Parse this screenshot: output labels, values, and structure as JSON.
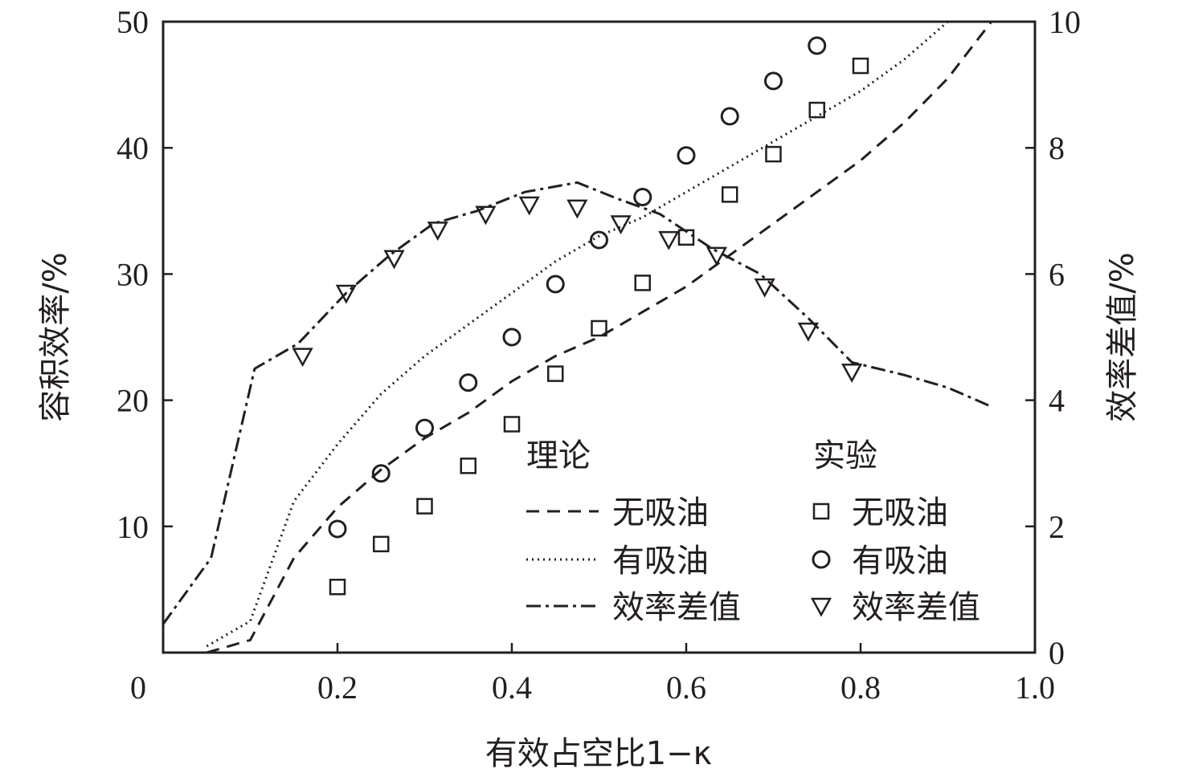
{
  "chart_data": {
    "type": "line",
    "x_axis": {
      "label": "有效占空比1−κ",
      "range": [
        0,
        1.0
      ],
      "ticks": [
        0,
        0.2,
        0.4,
        0.6,
        0.8,
        1.0
      ],
      "tick_labels": [
        "0",
        "0.2",
        "0.4",
        "0.6",
        "0.8",
        "1.0"
      ]
    },
    "y_axis_left": {
      "label": "容积效率/%",
      "range": [
        0,
        50
      ],
      "ticks": [
        10,
        20,
        30,
        40,
        50
      ],
      "tick_labels": [
        "10",
        "20",
        "30",
        "40",
        "50"
      ]
    },
    "y_axis_right": {
      "label": "效率差值/%",
      "range": [
        0,
        10
      ],
      "ticks": [
        0,
        2,
        4,
        6,
        8,
        10
      ],
      "tick_labels": [
        "0",
        "2",
        "4",
        "6",
        "8",
        "10"
      ]
    },
    "grid": false,
    "legend": {
      "placement": "bottom-right",
      "theory_heading": "理论",
      "experiment_heading": "实验",
      "entries": [
        "无吸油",
        "有吸油",
        "效率差值"
      ]
    },
    "series": [
      {
        "name": "无吸油",
        "group": "理论",
        "kind": "line",
        "style": "dashed",
        "axis": "left",
        "x": [
          0.05,
          0.1,
          0.15,
          0.2,
          0.25,
          0.3,
          0.35,
          0.4,
          0.45,
          0.5,
          0.55,
          0.6,
          0.65,
          0.7,
          0.75,
          0.8,
          0.85,
          0.9,
          0.95
        ],
        "y": [
          0,
          1,
          7.5,
          11.5,
          14.5,
          17,
          19,
          21.5,
          23.5,
          25,
          27,
          29,
          31.5,
          34,
          36.5,
          39,
          42,
          45.5,
          50
        ]
      },
      {
        "name": "有吸油",
        "group": "理论",
        "kind": "line",
        "style": "dotted",
        "axis": "left",
        "x": [
          0.05,
          0.1,
          0.15,
          0.2,
          0.25,
          0.3,
          0.35,
          0.4,
          0.45,
          0.5,
          0.55,
          0.6,
          0.65,
          0.7,
          0.75,
          0.8,
          0.85,
          0.9
        ],
        "y": [
          0.5,
          2.5,
          12,
          16.5,
          20.5,
          23.5,
          26,
          28.5,
          31,
          33,
          34.5,
          36.5,
          38.5,
          40.5,
          42.5,
          44.5,
          47,
          50
        ]
      },
      {
        "name": "效率差值",
        "group": "理论",
        "kind": "line",
        "style": "dashdot",
        "axis": "right",
        "x": [
          0,
          0.055,
          0.105,
          0.155,
          0.21,
          0.26,
          0.31,
          0.36,
          0.415,
          0.475,
          0.52,
          0.57,
          0.63,
          0.685,
          0.74,
          0.79,
          0.85,
          0.9,
          0.95
        ],
        "y": [
          0.45,
          1.5,
          4.5,
          4.9,
          5.7,
          6.3,
          6.8,
          7.0,
          7.3,
          7.45,
          7.2,
          6.95,
          6.4,
          6.0,
          5.3,
          4.6,
          4.4,
          4.2,
          3.9
        ]
      },
      {
        "name": "无吸油",
        "group": "实验",
        "kind": "scatter",
        "marker": "square",
        "axis": "left",
        "x": [
          0.2,
          0.25,
          0.3,
          0.35,
          0.4,
          0.45,
          0.5,
          0.55,
          0.6,
          0.65,
          0.7,
          0.75,
          0.8
        ],
        "y": [
          5.2,
          8.6,
          11.6,
          14.8,
          18.1,
          22.1,
          25.7,
          29.3,
          32.9,
          36.3,
          39.5,
          43.0,
          46.5
        ]
      },
      {
        "name": "有吸油",
        "group": "实验",
        "kind": "scatter",
        "marker": "circle",
        "axis": "left",
        "x": [
          0.2,
          0.25,
          0.3,
          0.35,
          0.4,
          0.45,
          0.5,
          0.55,
          0.6,
          0.65,
          0.7,
          0.75
        ],
        "y": [
          9.8,
          14.2,
          17.8,
          21.4,
          25.0,
          29.2,
          32.7,
          36.1,
          39.4,
          42.5,
          45.3,
          48.1
        ]
      },
      {
        "name": "效率差值",
        "group": "实验",
        "kind": "scatter",
        "marker": "triangle-down",
        "axis": "right",
        "x": [
          0.16,
          0.21,
          0.265,
          0.315,
          0.37,
          0.42,
          0.475,
          0.525,
          0.58,
          0.635,
          0.69,
          0.74,
          0.79
        ],
        "y": [
          4.7,
          5.7,
          6.25,
          6.7,
          6.95,
          7.1,
          7.05,
          6.8,
          6.55,
          6.3,
          5.8,
          5.1,
          4.45
        ]
      }
    ]
  }
}
